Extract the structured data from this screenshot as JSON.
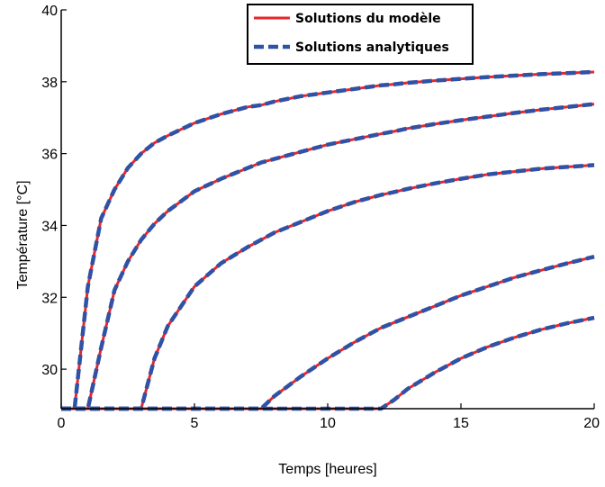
{
  "chart_data": {
    "type": "line",
    "title": "",
    "xlabel": "Temps [heures]",
    "ylabel": "Température [°C]",
    "xlim": [
      0,
      20
    ],
    "ylim": [
      28.9,
      40
    ],
    "xticks": [
      0,
      5,
      10,
      15,
      20
    ],
    "yticks": [
      30,
      32,
      34,
      36,
      38,
      40
    ],
    "grid": false,
    "legend_position": "top-right",
    "legend": [
      {
        "label": "Solutions du modèle",
        "color": "#e8262b",
        "style": "solid"
      },
      {
        "label": "Solutions analytiques",
        "color": "#2f52a4",
        "style": "dashed"
      }
    ],
    "x": [
      0,
      0.5,
      1,
      1.5,
      2,
      2.5,
      3,
      3.5,
      4,
      5,
      6,
      7,
      7.5,
      8,
      9,
      10,
      11,
      12,
      12.5,
      13,
      14,
      15,
      16,
      17,
      18,
      19,
      20
    ],
    "series": [
      {
        "name": "Solutions du modèle",
        "curves": [
          [
            28.9,
            28.9,
            32.3,
            34.2,
            35.0,
            35.6,
            36.0,
            36.3,
            36.5,
            36.85,
            37.1,
            37.3,
            37.35,
            37.45,
            37.6,
            37.7,
            37.8,
            37.9,
            37.93,
            37.97,
            38.03,
            38.08,
            38.13,
            38.17,
            38.21,
            38.24,
            38.27
          ],
          [
            28.9,
            28.9,
            28.9,
            30.6,
            32.2,
            33.0,
            33.6,
            34.05,
            34.4,
            34.95,
            35.3,
            35.6,
            35.75,
            35.85,
            36.05,
            36.25,
            36.4,
            36.55,
            36.62,
            36.7,
            36.82,
            36.93,
            37.03,
            37.13,
            37.22,
            37.3,
            37.38
          ],
          [
            28.9,
            28.9,
            28.9,
            28.9,
            28.9,
            28.9,
            28.9,
            30.3,
            31.2,
            32.3,
            32.95,
            33.4,
            33.6,
            33.8,
            34.1,
            34.4,
            34.65,
            34.85,
            34.93,
            35.02,
            35.17,
            35.3,
            35.42,
            35.5,
            35.58,
            35.63,
            35.68
          ],
          [
            28.9,
            28.9,
            28.9,
            28.9,
            28.9,
            28.9,
            28.9,
            28.9,
            28.9,
            28.9,
            28.9,
            28.9,
            28.9,
            29.25,
            29.8,
            30.3,
            30.75,
            31.15,
            31.3,
            31.45,
            31.75,
            32.05,
            32.3,
            32.55,
            32.75,
            32.95,
            33.13
          ],
          [
            28.9,
            28.9,
            28.9,
            28.9,
            28.9,
            28.9,
            28.9,
            28.9,
            28.9,
            28.9,
            28.9,
            28.9,
            28.9,
            28.9,
            28.9,
            28.9,
            28.9,
            28.9,
            29.15,
            29.45,
            29.9,
            30.3,
            30.62,
            30.88,
            31.1,
            31.28,
            31.43
          ]
        ]
      },
      {
        "name": "Solutions analytiques",
        "curves": [
          [
            28.9,
            28.9,
            32.3,
            34.2,
            35.0,
            35.6,
            36.0,
            36.3,
            36.5,
            36.85,
            37.1,
            37.3,
            37.35,
            37.45,
            37.6,
            37.7,
            37.8,
            37.9,
            37.93,
            37.97,
            38.03,
            38.08,
            38.13,
            38.17,
            38.21,
            38.24,
            38.27
          ],
          [
            28.9,
            28.9,
            28.9,
            30.6,
            32.2,
            33.0,
            33.6,
            34.05,
            34.4,
            34.95,
            35.3,
            35.6,
            35.75,
            35.85,
            36.05,
            36.25,
            36.4,
            36.55,
            36.62,
            36.7,
            36.82,
            36.93,
            37.03,
            37.13,
            37.22,
            37.3,
            37.38
          ],
          [
            28.9,
            28.9,
            28.9,
            28.9,
            28.9,
            28.9,
            28.9,
            30.3,
            31.2,
            32.3,
            32.95,
            33.4,
            33.6,
            33.8,
            34.1,
            34.4,
            34.65,
            34.85,
            34.93,
            35.02,
            35.17,
            35.3,
            35.42,
            35.5,
            35.58,
            35.63,
            35.68
          ],
          [
            28.9,
            28.9,
            28.9,
            28.9,
            28.9,
            28.9,
            28.9,
            28.9,
            28.9,
            28.9,
            28.9,
            28.9,
            28.9,
            29.25,
            29.8,
            30.3,
            30.75,
            31.15,
            31.3,
            31.45,
            31.75,
            32.05,
            32.3,
            32.55,
            32.75,
            32.95,
            33.13
          ],
          [
            28.9,
            28.9,
            28.9,
            28.9,
            28.9,
            28.9,
            28.9,
            28.9,
            28.9,
            28.9,
            28.9,
            28.9,
            28.9,
            28.9,
            28.9,
            28.9,
            28.9,
            28.9,
            29.15,
            29.45,
            29.9,
            30.3,
            30.62,
            30.88,
            31.1,
            31.28,
            31.43
          ]
        ]
      }
    ]
  }
}
